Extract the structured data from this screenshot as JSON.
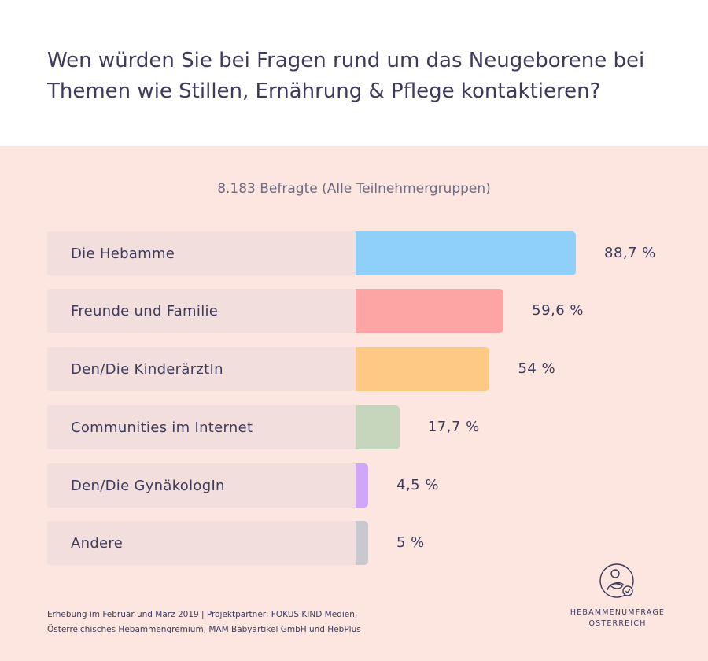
{
  "title": "Wen würden Sie bei Fragen rund um das Neugeborene bei Themen wie Stillen, Ernährung & Pflege kontaktieren?",
  "subtitle": "8.183 Befragte (Alle Teilnehmergruppen)",
  "chart_data": {
    "type": "bar",
    "orientation": "horizontal",
    "title": "Wen würden Sie bei Fragen rund um das Neugeborene bei Themen wie Stillen, Ernährung & Pflege kontaktieren?",
    "subtitle": "8.183 Befragte (Alle Teilnehmergruppen)",
    "categories": [
      "Die Hebamme",
      "Freunde und Familie",
      "Den/Die KinderärztIn",
      "Communities im Internet",
      "Den/Die GynäkologIn",
      "Andere"
    ],
    "values": [
      88.7,
      59.6,
      54,
      17.7,
      4.5,
      5
    ],
    "value_labels": [
      "88,7 %",
      "59,6 %",
      "54 %",
      "17,7 %",
      "4,5 %",
      "5 %"
    ],
    "colors": [
      "#8fd0fb",
      "#fda4a4",
      "#fec985",
      "#c6d6bc",
      "#d1a6f9",
      "#c7c9ce"
    ],
    "unit": "%",
    "xlim": [
      0,
      100
    ],
    "grid": false,
    "legend": "none"
  },
  "footnote": {
    "line1": "Erhebung im Februar und März 2019  |  Projektpartner: FOKUS KIND Medien,",
    "line2": "Österreichisches Hebammengremium, MAM Babyartikel GmbH und HebPlus"
  },
  "logo": {
    "icon": "mother-baby-icon",
    "line1": "HEBAMMENUMFRAGE",
    "line2": "ÖSTERREICH"
  }
}
